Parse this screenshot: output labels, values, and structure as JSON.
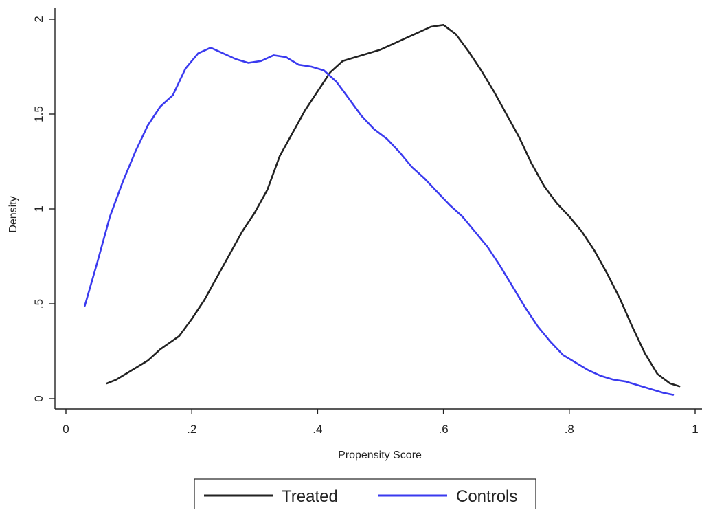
{
  "chart_data": {
    "type": "line",
    "xlabel": "Propensity Score",
    "ylabel": "Density",
    "xlim": [
      0,
      1
    ],
    "ylim": [
      0,
      2
    ],
    "xticks": [
      {
        "value": 0,
        "label": "0"
      },
      {
        "value": 0.2,
        "label": ".2"
      },
      {
        "value": 0.4,
        "label": ".4"
      },
      {
        "value": 0.6,
        "label": ".6"
      },
      {
        "value": 0.8,
        "label": ".8"
      },
      {
        "value": 1,
        "label": "1"
      }
    ],
    "yticks": [
      {
        "value": 0,
        "label": "0"
      },
      {
        "value": 0.5,
        "label": ".5"
      },
      {
        "value": 1,
        "label": "1"
      },
      {
        "value": 1.5,
        "label": "1.5"
      },
      {
        "value": 2,
        "label": "2"
      }
    ],
    "grid": false,
    "legend_position": "bottom",
    "series": [
      {
        "name": "Treated",
        "color": "#222222",
        "points": [
          [
            0.065,
            0.08
          ],
          [
            0.08,
            0.1
          ],
          [
            0.1,
            0.14
          ],
          [
            0.13,
            0.2
          ],
          [
            0.15,
            0.26
          ],
          [
            0.18,
            0.33
          ],
          [
            0.2,
            0.42
          ],
          [
            0.22,
            0.52
          ],
          [
            0.24,
            0.64
          ],
          [
            0.26,
            0.76
          ],
          [
            0.28,
            0.88
          ],
          [
            0.3,
            0.98
          ],
          [
            0.32,
            1.1
          ],
          [
            0.34,
            1.28
          ],
          [
            0.36,
            1.4
          ],
          [
            0.38,
            1.52
          ],
          [
            0.4,
            1.62
          ],
          [
            0.42,
            1.72
          ],
          [
            0.44,
            1.78
          ],
          [
            0.46,
            1.8
          ],
          [
            0.48,
            1.82
          ],
          [
            0.5,
            1.84
          ],
          [
            0.52,
            1.87
          ],
          [
            0.54,
            1.9
          ],
          [
            0.56,
            1.93
          ],
          [
            0.58,
            1.96
          ],
          [
            0.6,
            1.97
          ],
          [
            0.62,
            1.92
          ],
          [
            0.64,
            1.83
          ],
          [
            0.66,
            1.73
          ],
          [
            0.68,
            1.62
          ],
          [
            0.7,
            1.5
          ],
          [
            0.72,
            1.38
          ],
          [
            0.74,
            1.24
          ],
          [
            0.76,
            1.12
          ],
          [
            0.78,
            1.03
          ],
          [
            0.8,
            0.96
          ],
          [
            0.82,
            0.88
          ],
          [
            0.84,
            0.78
          ],
          [
            0.86,
            0.66
          ],
          [
            0.88,
            0.53
          ],
          [
            0.9,
            0.38
          ],
          [
            0.92,
            0.24
          ],
          [
            0.94,
            0.13
          ],
          [
            0.96,
            0.08
          ],
          [
            0.975,
            0.065
          ]
        ]
      },
      {
        "name": "Controls",
        "color": "#3a3aef",
        "points": [
          [
            0.03,
            0.49
          ],
          [
            0.05,
            0.72
          ],
          [
            0.07,
            0.96
          ],
          [
            0.09,
            1.14
          ],
          [
            0.11,
            1.3
          ],
          [
            0.13,
            1.44
          ],
          [
            0.15,
            1.54
          ],
          [
            0.17,
            1.6
          ],
          [
            0.19,
            1.74
          ],
          [
            0.21,
            1.82
          ],
          [
            0.23,
            1.85
          ],
          [
            0.25,
            1.82
          ],
          [
            0.27,
            1.79
          ],
          [
            0.29,
            1.77
          ],
          [
            0.31,
            1.78
          ],
          [
            0.33,
            1.81
          ],
          [
            0.35,
            1.8
          ],
          [
            0.37,
            1.76
          ],
          [
            0.39,
            1.75
          ],
          [
            0.41,
            1.73
          ],
          [
            0.43,
            1.67
          ],
          [
            0.45,
            1.58
          ],
          [
            0.47,
            1.49
          ],
          [
            0.49,
            1.42
          ],
          [
            0.51,
            1.37
          ],
          [
            0.53,
            1.3
          ],
          [
            0.55,
            1.22
          ],
          [
            0.57,
            1.16
          ],
          [
            0.59,
            1.09
          ],
          [
            0.61,
            1.02
          ],
          [
            0.63,
            0.96
          ],
          [
            0.65,
            0.88
          ],
          [
            0.67,
            0.8
          ],
          [
            0.69,
            0.7
          ],
          [
            0.71,
            0.59
          ],
          [
            0.73,
            0.48
          ],
          [
            0.75,
            0.38
          ],
          [
            0.77,
            0.3
          ],
          [
            0.79,
            0.23
          ],
          [
            0.81,
            0.19
          ],
          [
            0.83,
            0.15
          ],
          [
            0.85,
            0.12
          ],
          [
            0.87,
            0.1
          ],
          [
            0.89,
            0.09
          ],
          [
            0.91,
            0.07
          ],
          [
            0.93,
            0.05
          ],
          [
            0.95,
            0.03
          ],
          [
            0.965,
            0.02
          ]
        ]
      }
    ]
  }
}
